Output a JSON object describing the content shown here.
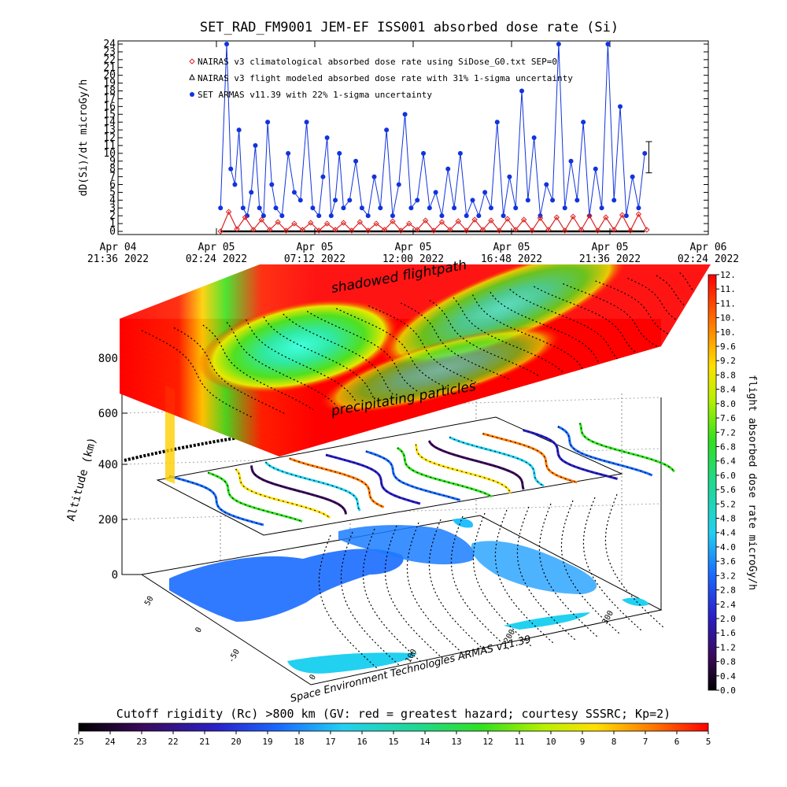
{
  "header": {
    "title": "SET_RAD_FM9001  JEM-EF ISS001 absorbed dose rate (Si)"
  },
  "chart_data": [
    {
      "type": "line",
      "ylabel": "dD(Si)/dt microGy/h",
      "ylim": [
        0,
        24
      ],
      "y_ticks": [
        "0",
        "1",
        "2",
        "3",
        "4",
        "5",
        "6",
        "7",
        "8",
        "9",
        "10",
        "11",
        "12",
        "13",
        "14",
        "15",
        "16",
        "17",
        "18",
        "19",
        "20",
        "21",
        "22",
        "23",
        "24"
      ],
      "x_ticks": [
        {
          "l1": "Apr 04",
          "l2": "21:36 2022"
        },
        {
          "l1": "Apr 05",
          "l2": "02:24 2022"
        },
        {
          "l1": "Apr 05",
          "l2": "07:12 2022"
        },
        {
          "l1": "Apr 05",
          "l2": "12:00 2022"
        },
        {
          "l1": "Apr 05",
          "l2": "16:48 2022"
        },
        {
          "l1": "Apr 05",
          "l2": "21:36 2022"
        },
        {
          "l1": "Apr 06",
          "l2": "02:24 2022"
        }
      ],
      "xlim_hours": [
        0,
        28.8
      ],
      "legend": [
        {
          "label": "NAIRAS v3 climatological absorbed dose rate using SiDose_G0.txt SEP=0",
          "symbol": "diamond",
          "color": "#dd2222"
        },
        {
          "label": "NAIRAS v3 flight modeled absorbed dose rate with 31% 1-sigma uncertainty",
          "symbol": "triangle",
          "color": "#000000"
        },
        {
          "label": "SET ARMAS v11.39 with 22% 1-sigma uncertainty",
          "symbol": "dot",
          "color": "#1133dd"
        }
      ],
      "legend_position": "top-left",
      "series": [
        {
          "name": "SET ARMAS v11.39 with 22% 1-sigma uncertainty",
          "color": "#1133dd",
          "x_hours": [
            5.0,
            5.3,
            5.5,
            5.7,
            5.9,
            6.1,
            6.3,
            6.5,
            6.7,
            6.9,
            7.1,
            7.3,
            7.5,
            7.7,
            8.0,
            8.3,
            8.6,
            8.9,
            9.2,
            9.5,
            9.8,
            10.0,
            10.2,
            10.4,
            10.6,
            10.8,
            11.0,
            11.3,
            11.6,
            11.9,
            12.2,
            12.5,
            12.8,
            13.1,
            13.4,
            13.7,
            14.0,
            14.3,
            14.6,
            14.9,
            15.2,
            15.5,
            15.8,
            16.1,
            16.4,
            16.7,
            17.0,
            17.3,
            17.6,
            17.9,
            18.2,
            18.5,
            18.8,
            19.1,
            19.4,
            19.7,
            20.0,
            20.3,
            20.6,
            20.9,
            21.2,
            21.5,
            21.8,
            22.1,
            22.4,
            22.7,
            23.0,
            23.3,
            23.6,
            23.9,
            24.2,
            24.5,
            24.8,
            25.1,
            25.4,
            25.7
          ],
          "values": [
            3,
            24,
            8,
            6,
            13,
            3,
            2,
            5,
            11,
            3,
            2,
            14,
            6,
            3,
            2,
            10,
            5,
            4,
            14,
            3,
            2,
            7,
            12,
            2,
            4,
            10,
            3,
            4,
            9,
            3,
            2,
            7,
            3,
            13,
            2,
            6,
            15,
            3,
            4,
            10,
            3,
            5,
            2,
            8,
            3,
            10,
            2,
            4,
            2,
            5,
            3,
            14,
            2,
            7,
            3,
            18,
            4,
            12,
            2,
            6,
            4,
            24,
            3,
            9,
            4,
            14,
            2,
            8,
            3,
            24,
            4,
            16,
            2,
            7,
            3,
            10
          ]
        },
        {
          "name": "NAIRAS v3 climatological absorbed dose rate using SiDose_G0.txt SEP=0",
          "color": "#dd2222",
          "x_hours": [
            5.0,
            5.4,
            5.8,
            6.2,
            6.6,
            7.0,
            7.4,
            7.8,
            8.2,
            8.6,
            9.0,
            9.4,
            9.8,
            10.2,
            10.6,
            11.0,
            11.4,
            11.8,
            12.2,
            12.6,
            13.0,
            13.4,
            13.8,
            14.2,
            14.6,
            15.0,
            15.4,
            15.8,
            16.2,
            16.6,
            17.0,
            17.4,
            17.8,
            18.2,
            18.6,
            19.0,
            19.4,
            19.8,
            20.2,
            20.6,
            21.0,
            21.4,
            21.8,
            22.2,
            22.6,
            23.0,
            23.4,
            23.8,
            24.2,
            24.6,
            25.0,
            25.4,
            25.8
          ],
          "values": [
            0,
            2.5,
            0.3,
            1.8,
            0.2,
            1.5,
            0.2,
            1.2,
            0.1,
            1.0,
            0.2,
            1.1,
            0.1,
            1.0,
            0.2,
            1.1,
            0.1,
            1.2,
            0.1,
            1.0,
            0.2,
            1.3,
            0.1,
            1.0,
            0.2,
            1.4,
            0.1,
            1.2,
            0.2,
            1.3,
            0.1,
            1.5,
            0.2,
            1.4,
            0.1,
            1.6,
            0.2,
            1.5,
            0.1,
            1.7,
            0.2,
            1.8,
            0.1,
            1.9,
            0.2,
            2.0,
            0.1,
            1.8,
            0.2,
            2.1,
            0.1,
            2.2,
            0.2
          ]
        }
      ],
      "error_bar_y": [
        7.5,
        11.5
      ]
    },
    {
      "type": "heatmap",
      "ylabel": "Altitude (km)",
      "z_ticks": [
        "0",
        "200",
        "400",
        "600",
        "800"
      ],
      "lat_ticks": [
        "50",
        "0",
        "-50"
      ],
      "lon_ticks": [
        "0",
        "100",
        "200",
        "300"
      ],
      "annotations": [
        "shadowed flightpath",
        "precipitating particles"
      ],
      "footer": "Space Environment Technologies ARMAS v11.39"
    },
    {
      "type": "heatmap",
      "colorbar_label": "flight absorbed dose rate microGy/h",
      "colorbar_ticks": [
        "0.0",
        "0.4",
        "0.8",
        "1.2",
        "1.6",
        "2.0",
        "2.4",
        "2.8",
        "3.2",
        "3.6",
        "4.0",
        "4.4",
        "4.8",
        "5.2",
        "5.6",
        "6.0",
        "6.4",
        "6.8",
        "7.2",
        "7.6",
        "8.0",
        "8.4",
        "8.8",
        "9.2",
        "9.6",
        "10.",
        "10.",
        "11.",
        "11.",
        "12."
      ]
    },
    {
      "type": "heatmap",
      "colorbar_label": "Cutoff rigidity (Rc) >800 km (GV: red = greatest hazard; courtesy SSSRC; Kp=2)",
      "colorbar_ticks": [
        "25",
        "24",
        "23",
        "22",
        "21",
        "20",
        "19",
        "18",
        "17",
        "16",
        "15",
        "14",
        "13",
        "12",
        "11",
        "10",
        "9",
        "8",
        "7",
        "6",
        "5"
      ]
    }
  ]
}
